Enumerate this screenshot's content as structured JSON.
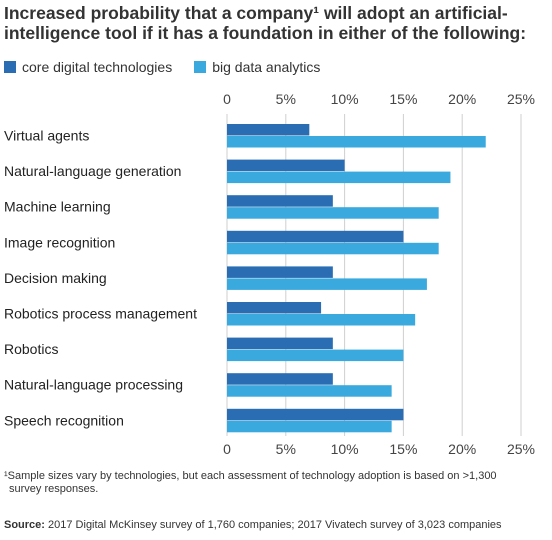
{
  "title_line1": "Increased probability that a company¹ will adopt an artificial-",
  "title_line2": "intelligence tool if it has a foundation in either of the following:",
  "footnote_line1": "¹Sample sizes vary by technologies, but each assessment of technology adoption is based on >1,300",
  "footnote_line2": "survey responses.",
  "source_label": "Source:",
  "source_text": " 2017 Digital McKinsey survey of 1,760 companies; 2017 Vivatech survey of 3,023 companies",
  "chart_data": {
    "type": "bar",
    "orientation": "horizontal",
    "categories": [
      "Virtual agents",
      "Natural-language generation",
      "Machine learning",
      "Image recognition",
      "Decision making",
      "Robotics process management",
      "Robotics",
      "Natural-language processing",
      "Speech recognition"
    ],
    "series": [
      {
        "name": "core digital technologies",
        "color": "#2a6db3",
        "values": [
          7,
          10,
          9,
          15,
          9,
          8,
          9,
          9,
          15
        ]
      },
      {
        "name": "big data analytics",
        "color": "#3aa9de",
        "values": [
          22,
          19,
          18,
          18,
          17,
          16,
          15,
          14,
          14
        ]
      }
    ],
    "xlim": [
      0,
      25
    ],
    "xticks": [
      "0",
      "5%",
      "10%",
      "15%",
      "20%",
      "25%"
    ],
    "xtick_values": [
      0,
      5,
      10,
      15,
      20,
      25
    ],
    "grid": true,
    "legend_position": "top-left"
  }
}
